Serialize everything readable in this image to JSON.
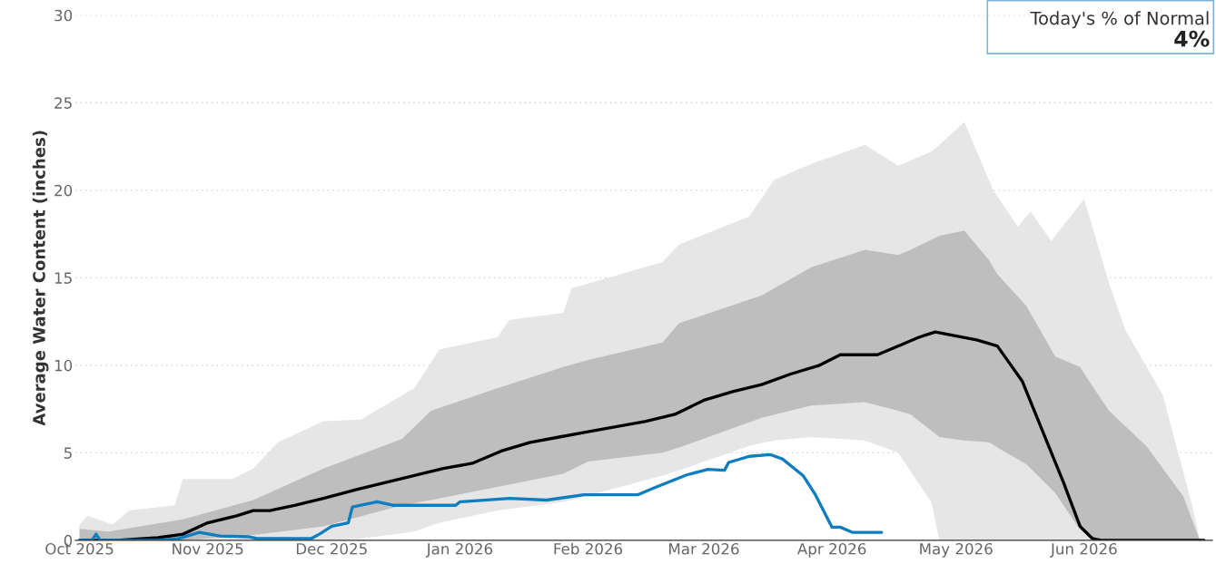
{
  "chart_data": {
    "type": "line",
    "ylabel": "Average Water Content (inches)",
    "annotations": [
      "Today's % of Normal",
      "4%"
    ],
    "xlim": [
      "2025-09-30",
      "2026-07-02"
    ],
    "xticks": [
      {
        "value": "2025-10-01",
        "label": "Oct 2025"
      },
      {
        "value": "2025-11-01",
        "label": "Nov 2025"
      },
      {
        "value": "2025-12-01",
        "label": "Dec 2025"
      },
      {
        "value": "2026-01-01",
        "label": "Jan 2026"
      },
      {
        "value": "2026-02-01",
        "label": "Feb 2026"
      },
      {
        "value": "2026-03-01",
        "label": "Mar 2026"
      },
      {
        "value": "2026-04-01",
        "label": "Apr 2026"
      },
      {
        "value": "2026-05-01",
        "label": "May 2026"
      },
      {
        "value": "2026-06-01",
        "label": "Jun 2026"
      }
    ],
    "ylim": [
      0,
      30
    ],
    "yticks": [
      0,
      5,
      10,
      15,
      20,
      25,
      30
    ],
    "grid": "y",
    "legend": false,
    "marker": "none",
    "line_style": "solid",
    "series": [
      {
        "color": "#e6e6e6",
        "x": [
          "2025-10-01",
          "2025-10-03",
          "2025-10-09",
          "2025-10-13",
          "2025-10-24",
          "2025-10-26",
          "2025-11-07",
          "2025-11-12",
          "2025-11-18",
          "2025-11-29",
          "2025-12-08",
          "2025-12-21",
          "2025-12-27",
          "2026-01-10",
          "2026-01-13",
          "2026-01-26",
          "2026-01-28",
          "2026-02-19",
          "2026-02-23",
          "2026-03-12",
          "2026-03-18",
          "2026-03-27",
          "2026-04-09",
          "2026-04-17",
          "2026-04-23",
          "2026-04-25",
          "2026-04-27",
          "2026-05-03",
          "2026-05-10",
          "2026-05-16",
          "2026-05-19",
          "2026-05-24",
          "2026-06-01",
          "2026-06-07",
          "2026-06-11",
          "2026-06-20",
          "2026-06-27",
          "2026-06-29"
        ],
        "values": [
          null,
          null,
          null,
          null,
          null,
          null,
          null,
          null,
          null,
          null,
          null,
          null,
          null,
          null,
          null,
          null,
          null,
          null,
          null,
          null,
          null,
          null,
          null,
          null,
          null,
          null,
          null,
          null,
          null,
          null,
          null,
          null,
          null,
          null,
          null,
          null,
          null,
          null
        ],
        "upper": [
          0.9,
          1.4,
          0.9,
          1.7,
          2.0,
          3.5,
          3.5,
          4.1,
          5.6,
          6.8,
          6.9,
          8.7,
          10.9,
          11.6,
          12.6,
          13.0,
          14.4,
          15.9,
          16.9,
          18.5,
          20.6,
          21.5,
          22.6,
          21.4,
          22.0,
          22.2,
          22.6,
          23.9,
          20.0,
          17.9,
          18.8,
          17.1,
          19.5,
          14.7,
          12.0,
          8.3,
          2.1,
          0
        ],
        "lower": [
          0,
          0,
          0,
          0,
          0,
          0,
          0,
          0,
          0,
          0,
          0.1,
          0.5,
          1.0,
          1.7,
          1.8,
          2.2,
          2.3,
          3.7,
          4.0,
          5.4,
          5.7,
          5.9,
          5.7,
          5.0,
          2.9,
          2.2,
          0,
          0,
          0,
          0,
          0,
          0,
          0,
          0,
          0,
          0,
          0,
          0
        ]
      },
      {
        "color": "#bebebe",
        "x": [
          "2025-10-01",
          "2025-10-08",
          "2025-10-26",
          "2025-11-12",
          "2025-11-29",
          "2025-12-18",
          "2025-12-25",
          "2026-01-09",
          "2026-01-26",
          "2026-02-01",
          "2026-02-19",
          "2026-02-23",
          "2026-03-15",
          "2026-03-27",
          "2026-04-09",
          "2026-04-17",
          "2026-04-20",
          "2026-04-27",
          "2026-05-03",
          "2026-05-09",
          "2026-05-11",
          "2026-05-18",
          "2026-05-25",
          "2026-05-31",
          "2026-06-03",
          "2026-06-07",
          "2026-06-16",
          "2026-06-25",
          "2026-06-28",
          "2026-06-29"
        ],
        "values": [
          null,
          null,
          null,
          null,
          null,
          null,
          null,
          null,
          null,
          null,
          null,
          null,
          null,
          null,
          null,
          null,
          null,
          null,
          null,
          null,
          null,
          null,
          null,
          null,
          null,
          null,
          null,
          null,
          null,
          null
        ],
        "upper": [
          0.65,
          0.5,
          1.2,
          2.3,
          4.1,
          5.8,
          7.4,
          8.6,
          9.9,
          10.3,
          11.3,
          12.4,
          14.0,
          15.6,
          16.6,
          16.3,
          16.6,
          17.4,
          17.7,
          16.0,
          15.2,
          13.4,
          10.5,
          9.9,
          8.8,
          7.4,
          5.4,
          2.5,
          0.6,
          0
        ],
        "lower": [
          0,
          0,
          0,
          0.3,
          0.8,
          2.0,
          2.3,
          3.0,
          3.8,
          4.5,
          5.0,
          5.3,
          7.0,
          7.7,
          7.9,
          7.4,
          7.2,
          5.9,
          5.7,
          5.6,
          5.3,
          4.35,
          2.7,
          0.6,
          0,
          0,
          0,
          0,
          0,
          0
        ]
      },
      {
        "color": "#000000",
        "x": [
          "2025-10-01",
          "2025-10-10",
          "2025-10-20",
          "2025-10-26",
          "2025-11-01",
          "2025-11-08",
          "2025-11-12",
          "2025-11-16",
          "2025-11-22",
          "2025-11-29",
          "2025-12-07",
          "2025-12-14",
          "2025-12-21",
          "2025-12-28",
          "2026-01-04",
          "2026-01-11",
          "2026-01-18",
          "2026-01-25",
          "2026-02-01",
          "2026-02-08",
          "2026-02-15",
          "2026-02-22",
          "2026-03-01",
          "2026-03-08",
          "2026-03-15",
          "2026-03-22",
          "2026-03-29",
          "2026-04-03",
          "2026-04-12",
          "2026-04-18",
          "2026-04-22",
          "2026-04-26",
          "2026-05-06",
          "2026-05-11",
          "2026-05-17",
          "2026-05-22",
          "2026-05-27",
          "2026-05-31",
          "2026-06-03",
          "2026-06-05",
          "2026-06-30"
        ],
        "values": [
          0,
          0,
          0.15,
          0.35,
          1.0,
          1.4,
          1.7,
          1.7,
          2.0,
          2.4,
          2.9,
          3.3,
          3.7,
          4.1,
          4.4,
          5.1,
          5.6,
          5.9,
          6.2,
          6.5,
          6.8,
          7.2,
          8.0,
          8.5,
          8.9,
          9.5,
          10.0,
          10.6,
          10.6,
          11.2,
          11.6,
          11.9,
          11.45,
          11.1,
          9.1,
          6.2,
          3.3,
          0.8,
          0.1,
          0,
          0
        ]
      },
      {
        "color": "#0f7dc0",
        "x": [
          "2025-10-01",
          "2025-10-04",
          "2025-10-05",
          "2025-10-06",
          "2025-10-20",
          "2025-10-25",
          "2025-10-30",
          "2025-11-04",
          "2025-11-11",
          "2025-11-13",
          "2025-11-26",
          "2025-11-28",
          "2025-12-01",
          "2025-12-05",
          "2025-12-06",
          "2025-12-12",
          "2025-12-16",
          "2025-12-31",
          "2026-01-01",
          "2026-01-13",
          "2026-01-22",
          "2026-01-31",
          "2026-02-13",
          "2026-02-17",
          "2026-02-25",
          "2026-03-02",
          "2026-03-06",
          "2026-03-07",
          "2026-03-12",
          "2026-03-17",
          "2026-03-20",
          "2026-03-25",
          "2026-03-28",
          "2026-04-01",
          "2026-04-03",
          "2026-04-06",
          "2026-04-13"
        ],
        "values": [
          0,
          0,
          0.35,
          0,
          0,
          0.1,
          0.45,
          0.25,
          0.2,
          0.1,
          0.1,
          0.35,
          0.8,
          1.0,
          1.9,
          2.2,
          2.0,
          2.0,
          2.2,
          2.4,
          2.3,
          2.6,
          2.6,
          3.0,
          3.75,
          4.05,
          4.0,
          4.45,
          4.8,
          4.9,
          4.65,
          3.7,
          2.6,
          0.75,
          0.75,
          0.45,
          0.45
        ]
      }
    ]
  }
}
